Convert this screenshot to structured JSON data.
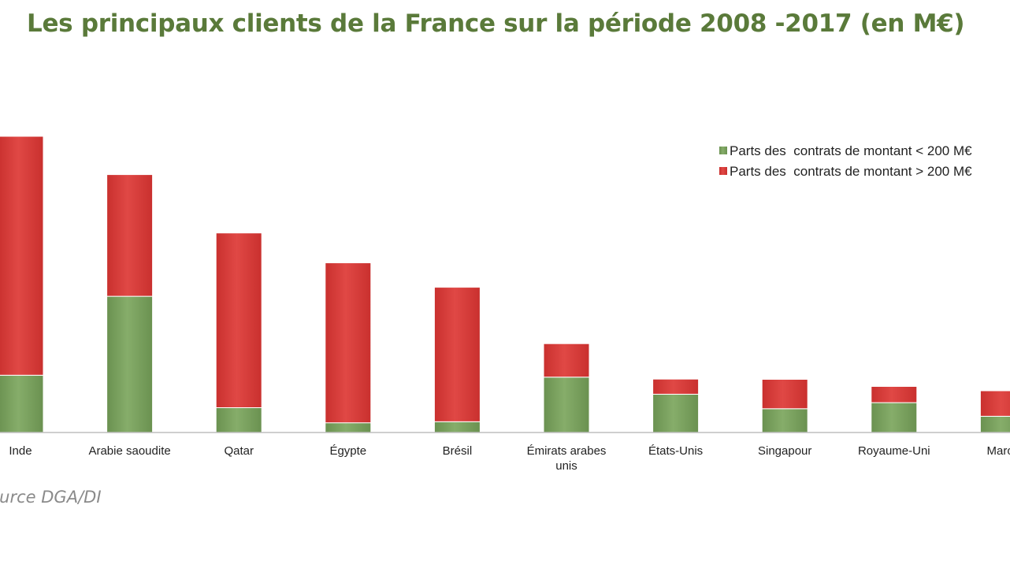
{
  "colors": {
    "title": "#5a7a3a",
    "small_contracts": "#7aa35e",
    "large_contracts": "#d9403d",
    "axis": "#bfbfbf",
    "source": "#8a8a8a"
  },
  "source_text": "Source DGA/DI",
  "chart_data": {
    "type": "bar",
    "stacked": true,
    "title": "Les principaux clients de la France sur la période 2008 -2017 (en M€)",
    "xlabel": "",
    "ylabel": "",
    "ylim": [
      0,
      14000
    ],
    "legend_position": "top-right",
    "categories": [
      [
        "Inde"
      ],
      [
        "Arabie saoudite"
      ],
      [
        "Qatar"
      ],
      [
        "Égypte"
      ],
      [
        "Brésil"
      ],
      [
        "Émirats arabes",
        "unis"
      ],
      [
        "États-Unis"
      ],
      [
        "Singapour"
      ],
      [
        "Royaume-Uni"
      ],
      [
        "Maroc"
      ]
    ],
    "series": [
      {
        "name": "Parts des  contrats de montant < 200 M€",
        "color": "#7aa35e",
        "values": [
          2650,
          6300,
          1150,
          450,
          500,
          2560,
          1770,
          1100,
          1380,
          750
        ]
      },
      {
        "name": "Parts des  contrats de montant > 200 M€",
        "color": "#d9403d",
        "values": [
          11050,
          5630,
          8080,
          7400,
          6220,
          1550,
          700,
          1360,
          750,
          1180
        ]
      }
    ]
  }
}
